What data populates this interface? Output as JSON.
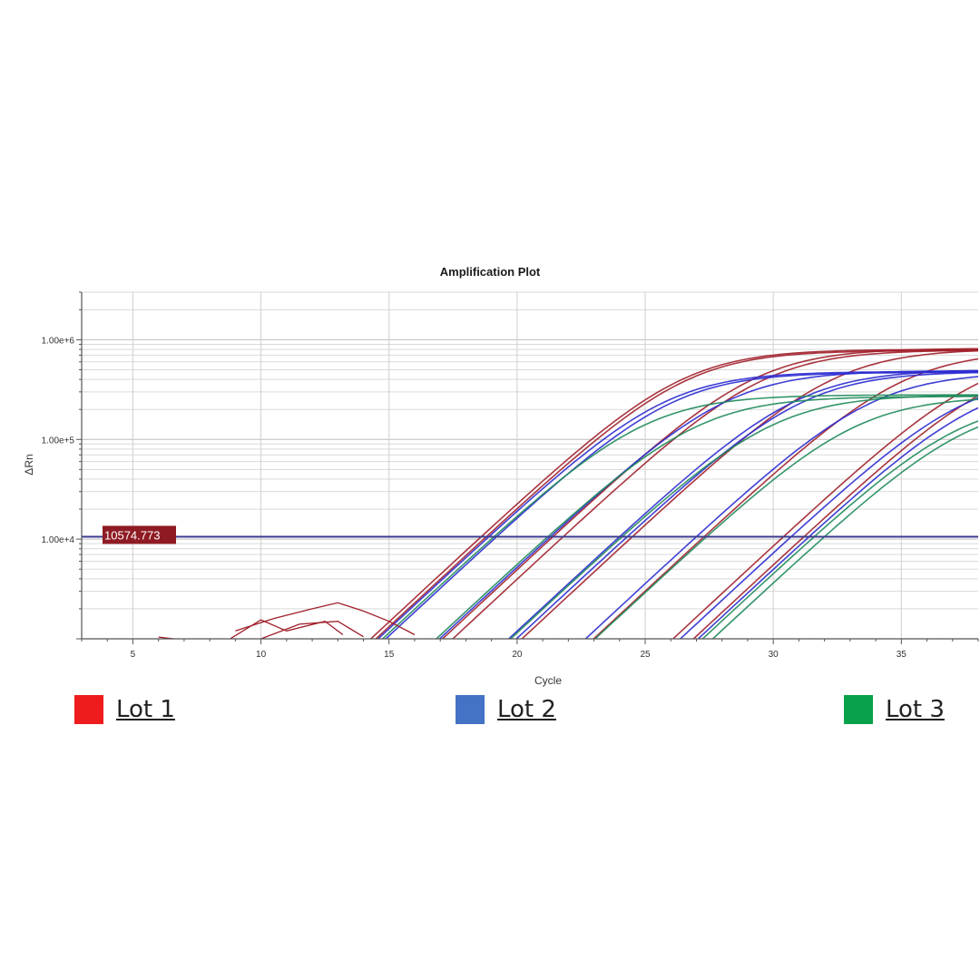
{
  "chart_data": {
    "type": "line",
    "title": "Amplification Plot",
    "xlabel": "Cycle",
    "ylabel": "ΔRn",
    "xlim": [
      3,
      38
    ],
    "ylim": [
      1000,
      3000000
    ],
    "yscale": "log",
    "x_ticks": [
      5,
      10,
      15,
      20,
      25,
      30,
      35
    ],
    "y_ticks": [
      {
        "value": 10000,
        "label": "1.00e+4"
      },
      {
        "value": 100000,
        "label": "1.00e+5"
      },
      {
        "value": 1000000,
        "label": "1.00e+6"
      }
    ],
    "grid": true,
    "threshold": {
      "value": 10574.773,
      "label": "10574.773"
    },
    "legend_position": "bottom",
    "series": [
      {
        "name": "Lot 1",
        "color": "#a01f2a",
        "legend_color": "#ee1c1c",
        "curves": [
          {
            "ct": 18.6,
            "plateau": 800000
          },
          {
            "ct": 18.8,
            "plateau": 780000
          },
          {
            "ct": 21.4,
            "plateau": 820000
          },
          {
            "ct": 21.8,
            "plateau": 790000
          },
          {
            "ct": 24.5,
            "plateau": 810000
          },
          {
            "ct": 27.3,
            "plateau": 770000
          },
          {
            "ct": 30.4,
            "plateau": 760000
          },
          {
            "ct": 31.2,
            "plateau": 700000
          }
        ]
      },
      {
        "name": "Lot 2",
        "color": "#2a2ad0",
        "legend_color": "#4472c4",
        "curves": [
          {
            "ct": 18.9,
            "plateau": 480000
          },
          {
            "ct": 19.2,
            "plateau": 470000
          },
          {
            "ct": 21.3,
            "plateau": 490000
          },
          {
            "ct": 24.0,
            "plateau": 500000
          },
          {
            "ct": 24.3,
            "plateau": 480000
          },
          {
            "ct": 27.0,
            "plateau": 470000
          },
          {
            "ct": 30.7,
            "plateau": 460000
          },
          {
            "ct": 31.4,
            "plateau": 420000
          }
        ]
      },
      {
        "name": "Lot 3",
        "color": "#1e8a5a",
        "legend_color": "#0aa14b",
        "curves": [
          {
            "ct": 19.1,
            "plateau": 280000
          },
          {
            "ct": 21.2,
            "plateau": 270000
          },
          {
            "ct": 24.1,
            "plateau": 280000
          },
          {
            "ct": 27.4,
            "plateau": 270000
          },
          {
            "ct": 31.6,
            "plateau": 260000
          },
          {
            "ct": 32.0,
            "plateau": 240000
          }
        ]
      }
    ],
    "noise_traces": [
      {
        "color": "#a01f2a",
        "points": [
          [
            8.8,
            1000
          ],
          [
            10,
            1550
          ],
          [
            11,
            1200
          ],
          [
            12.5,
            1500
          ],
          [
            13.2,
            1100
          ]
        ]
      },
      {
        "color": "#a01f2a",
        "points": [
          [
            9,
            1200
          ],
          [
            10.5,
            1600
          ],
          [
            12,
            2000
          ],
          [
            13,
            2300
          ],
          [
            14,
            1900
          ],
          [
            15,
            1500
          ],
          [
            16,
            1100
          ]
        ]
      },
      {
        "color": "#a01f2a",
        "points": [
          [
            10,
            1000
          ],
          [
            11.5,
            1400
          ],
          [
            13,
            1500
          ],
          [
            14,
            1050
          ]
        ]
      },
      {
        "color": "#a01f2a",
        "points": [
          [
            6,
            1040
          ],
          [
            6.6,
            1000
          ]
        ]
      }
    ]
  }
}
